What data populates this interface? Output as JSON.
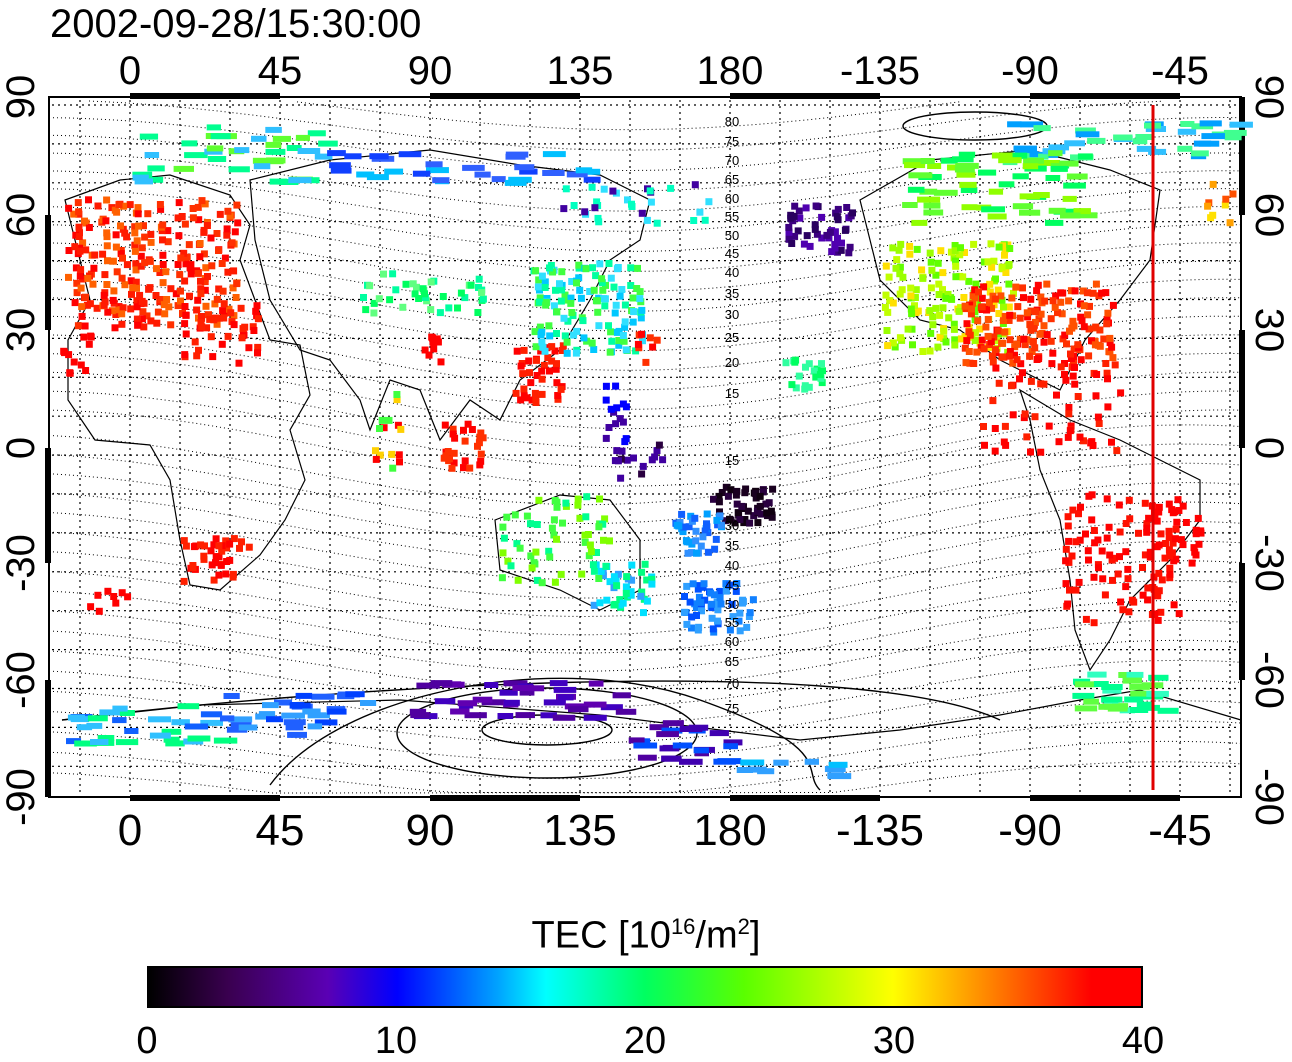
{
  "timestamp": "2002-09-28/15:30:00",
  "map": {
    "lon_ticks_labels": [
      "0",
      "45",
      "90",
      "135",
      "180",
      "-135",
      "-90",
      "-45"
    ],
    "lat_ticks_labels": [
      "90",
      "60",
      "30",
      "0",
      "-30",
      "-60",
      "-90"
    ],
    "contour_labels_north": [
      "80",
      "75",
      "70",
      "65",
      "60",
      "55",
      "50",
      "45",
      "40",
      "35",
      "30",
      "25",
      "20",
      "15"
    ],
    "contour_labels_south": [
      "15",
      "30",
      "35",
      "40",
      "45",
      "50",
      "55",
      "60",
      "65",
      "70",
      "75"
    ],
    "meridian_line_color": "#e00000",
    "meridian_line_lon": -52
  },
  "colorbar": {
    "title_main": "TEC  [10",
    "title_sup1": "16",
    "title_mid": "/m",
    "title_sup2": "2",
    "title_end": "]",
    "tick_labels": [
      "0",
      "10",
      "20",
      "30",
      "40"
    ],
    "range": [
      0,
      40
    ]
  }
}
